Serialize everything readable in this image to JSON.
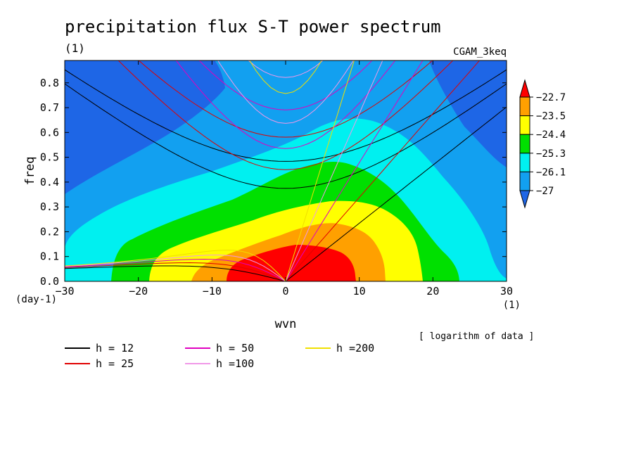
{
  "chart_data": {
    "type": "heatmap",
    "title": "precipitation flux S-T power spectrum",
    "units": "(1)",
    "dataset": "CGAM_3keq",
    "xlabel": "wvn",
    "ylabel": "freq",
    "xunits": "(1)",
    "yunits": "(day-1)",
    "note": "[ logarithm of data ]",
    "xlim": [
      -30,
      30
    ],
    "ylim": [
      0,
      0.89
    ],
    "xticks": [
      -30,
      -20,
      -10,
      0,
      10,
      20,
      30
    ],
    "yticks": [
      0.0,
      0.1,
      0.2,
      0.3,
      0.4,
      0.5,
      0.6,
      0.7,
      0.8
    ],
    "colorbar": {
      "levels": [
        "-22.7",
        "-23.5",
        "-24.4",
        "-25.3",
        "-26.1",
        "-27"
      ],
      "colors": [
        "#1e66e6",
        "#12a0f0",
        "#00f0f0",
        "#00e000",
        "#ffff00",
        "#ffa000",
        "#ff0000"
      ]
    },
    "dispersion_curves": [
      {
        "label": "h = 12",
        "h": 12,
        "color": "#000000"
      },
      {
        "label": "h = 25",
        "h": 25,
        "color": "#e00000"
      },
      {
        "label": "h = 50",
        "h": 50,
        "color": "#e000c0"
      },
      {
        "label": "h =100",
        "h": 100,
        "color": "#f098e8"
      },
      {
        "label": "h =200",
        "h": 200,
        "color": "#f0e000"
      }
    ]
  }
}
